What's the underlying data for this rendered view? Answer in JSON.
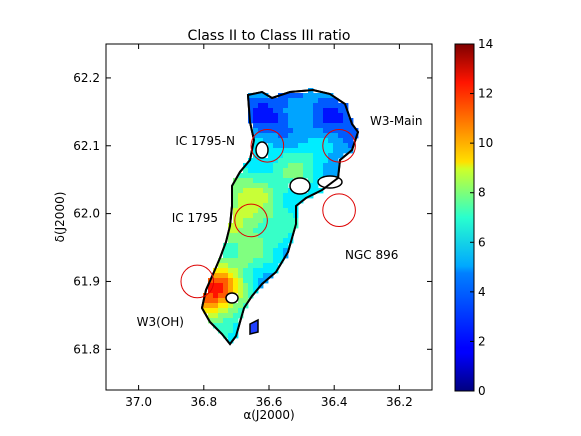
{
  "chart_data": {
    "type": "heatmap",
    "title": "Class II to Class III ratio",
    "xlabel": "α(J2000)",
    "ylabel": "δ(J2000)",
    "xlim": [
      37.1,
      36.1
    ],
    "ylim": [
      61.74,
      62.25
    ],
    "x_axis_inverted": true,
    "x_ticks": [
      "37.0",
      "36.8",
      "36.6",
      "36.4",
      "36.2"
    ],
    "x_tick_values": [
      37.0,
      36.8,
      36.6,
      36.4,
      36.2
    ],
    "y_ticks": [
      "61.8",
      "61.9",
      "62.0",
      "62.1",
      "62.2"
    ],
    "y_tick_values": [
      61.8,
      61.9,
      62.0,
      62.1,
      62.2
    ],
    "grid": false,
    "colorbar": {
      "min": 0,
      "max": 14,
      "ticks": [
        "0",
        "2",
        "4",
        "6",
        "8",
        "10",
        "12",
        "14"
      ],
      "tick_values": [
        0,
        2,
        4,
        6,
        8,
        10,
        12,
        14
      ],
      "colormap": "jet"
    },
    "annotations": [
      {
        "text": "IC 1795-N",
        "ra": 36.605,
        "dec": 62.1,
        "radius_deg": 0.05
      },
      {
        "text": "W3-Main",
        "ra": 36.385,
        "dec": 62.1,
        "radius_deg": 0.05
      },
      {
        "text": "IC 1795",
        "ra": 36.655,
        "dec": 61.99,
        "radius_deg": 0.05
      },
      {
        "text": "NGC 896",
        "ra": 36.385,
        "dec": 62.005,
        "radius_deg": 0.05
      },
      {
        "text": "W3(OH)",
        "ra": 36.82,
        "dec": 61.9,
        "radius_deg": 0.05
      }
    ],
    "annotation_color": "#dd0000"
  }
}
